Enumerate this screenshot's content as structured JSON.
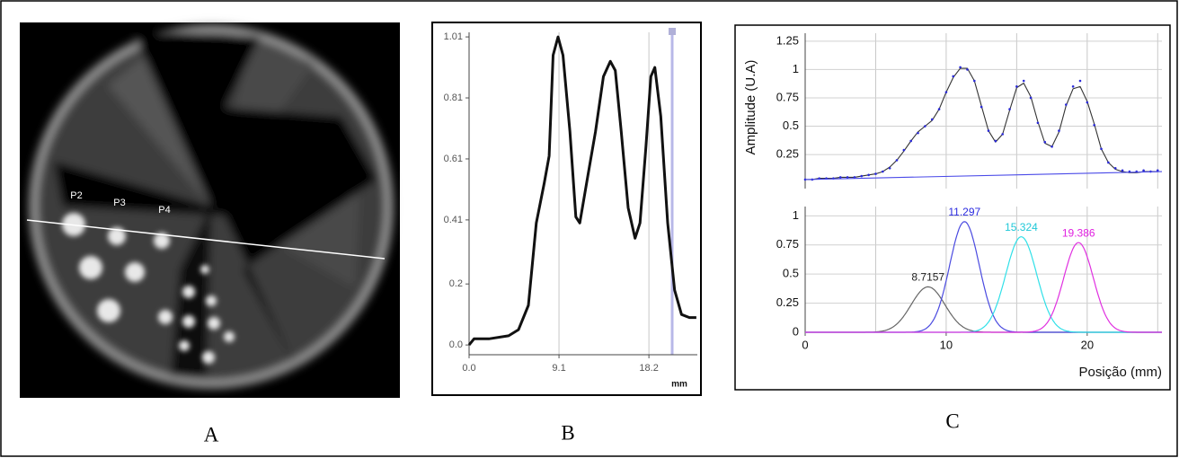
{
  "panels": {
    "labels": [
      "A",
      "B",
      "C"
    ]
  },
  "image": {
    "labels": [
      "P2",
      "P3",
      "P4"
    ]
  },
  "chart_data": [
    {
      "type": "line",
      "x_label": "mm",
      "grid": "x",
      "xlim": [
        0,
        23.1
      ],
      "xticks": [
        {
          "value": 0,
          "label": "0.0"
        },
        9.1,
        18.2
      ],
      "ylim": [
        -0.032,
        1.025
      ],
      "yticks": [
        {
          "value": 0,
          "label": "0.0"
        },
        0.2,
        0.41,
        0.61,
        0.81,
        1.01
      ],
      "x": [
        0,
        0.5,
        2,
        4,
        5,
        6,
        6.8,
        7.6,
        8.1,
        8.5,
        9.0,
        9.5,
        10.2,
        10.8,
        11.2,
        12,
        12.8,
        13.6,
        14.3,
        14.8,
        15.4,
        16.1,
        16.8,
        17.3,
        17.9,
        18.4,
        18.8,
        19.4,
        20.1,
        20.8,
        21.5,
        22.3,
        23
      ],
      "series": [
        {
          "color": "#111111",
          "style": "line",
          "values": [
            0,
            0.02,
            0.02,
            0.03,
            0.05,
            0.13,
            0.4,
            0.53,
            0.62,
            0.95,
            1.01,
            0.95,
            0.7,
            0.42,
            0.4,
            0.55,
            0.7,
            0.88,
            0.93,
            0.9,
            0.7,
            0.45,
            0.35,
            0.4,
            0.65,
            0.88,
            0.91,
            0.75,
            0.4,
            0.18,
            0.1,
            0.09,
            0.09
          ]
        }
      ]
    },
    {
      "type": "line",
      "y_label": "Amplitude (U.A)",
      "grid": "both",
      "xlim": [
        0,
        25.3
      ],
      "xgrid": [
        5,
        10,
        15,
        20,
        25
      ],
      "ylim": [
        -0.05,
        1.32
      ],
      "yticks": [
        0.25,
        0.5,
        0.75,
        1,
        1.25
      ],
      "x": [
        0,
        0.5,
        1,
        1.5,
        2,
        2.5,
        3,
        3.5,
        4,
        4.5,
        5,
        5.5,
        6,
        6.5,
        7,
        7.5,
        8,
        8.5,
        9,
        9.5,
        10,
        10.5,
        11,
        11.5,
        12,
        12.5,
        13,
        13.5,
        14,
        14.5,
        15,
        15.5,
        16,
        16.5,
        17,
        17.5,
        18,
        18.5,
        19,
        19.5,
        20,
        20.5,
        21,
        21.5,
        22,
        22.5,
        23,
        23.5,
        24,
        24.5,
        25
      ],
      "series": [
        {
          "color": "#333333",
          "style": "line",
          "values": [
            0.03,
            0.03,
            0.04,
            0.04,
            0.04,
            0.05,
            0.05,
            0.05,
            0.06,
            0.07,
            0.08,
            0.1,
            0.14,
            0.2,
            0.28,
            0.37,
            0.45,
            0.5,
            0.55,
            0.65,
            0.8,
            0.93,
            1.01,
            1.01,
            0.9,
            0.68,
            0.46,
            0.36,
            0.43,
            0.64,
            0.84,
            0.88,
            0.76,
            0.54,
            0.35,
            0.32,
            0.45,
            0.68,
            0.83,
            0.85,
            0.72,
            0.52,
            0.3,
            0.18,
            0.12,
            0.1,
            0.09,
            0.09,
            0.1,
            0.1,
            0.1
          ]
        },
        {
          "color": "#2a2ad8",
          "style": "dots",
          "values": [
            0.03,
            0.03,
            0.04,
            0.04,
            0.04,
            0.05,
            0.05,
            0.05,
            0.06,
            0.07,
            0.08,
            0.1,
            0.13,
            0.2,
            0.29,
            0.37,
            0.44,
            0.5,
            0.56,
            0.65,
            0.8,
            0.94,
            1.02,
            1.0,
            0.9,
            0.67,
            0.46,
            0.37,
            0.43,
            0.65,
            0.85,
            0.9,
            0.75,
            0.53,
            0.36,
            0.32,
            0.46,
            0.69,
            0.85,
            0.9,
            0.71,
            0.51,
            0.3,
            0.18,
            0.13,
            0.11,
            0.1,
            0.1,
            0.11,
            0.1,
            0.11
          ]
        },
        {
          "color": "#4a4ae8",
          "style": "line",
          "x": [
            0,
            25.3
          ],
          "values": [
            0.03,
            0.1
          ]
        }
      ]
    },
    {
      "type": "gaussian",
      "x_label": "Posição (mm)",
      "grid": "both",
      "xlim": [
        0,
        25.3
      ],
      "xticks": [
        0,
        10,
        20
      ],
      "xgrid": [
        5,
        10,
        15,
        20,
        25
      ],
      "ylim": [
        0,
        1.08
      ],
      "yticks": [
        0,
        0.25,
        0.5,
        0.75,
        1
      ],
      "series": [
        {
          "label": "8.7157",
          "center": 8.7157,
          "amplitude": 0.39,
          "sigma": 1.2,
          "color": "#666666",
          "label_color": "#222222"
        },
        {
          "label": "11.297",
          "center": 11.297,
          "amplitude": 0.95,
          "sigma": 1.05,
          "color": "#4a4ae0",
          "label_color": "#2a2ae0"
        },
        {
          "label": "15.324",
          "center": 15.324,
          "amplitude": 0.82,
          "sigma": 1.1,
          "color": "#30e0e8",
          "label_color": "#20c8d8"
        },
        {
          "label": "19.386",
          "center": 19.386,
          "amplitude": 0.77,
          "sigma": 1.05,
          "color": "#e030e0",
          "label_color": "#e020e0"
        }
      ]
    }
  ]
}
